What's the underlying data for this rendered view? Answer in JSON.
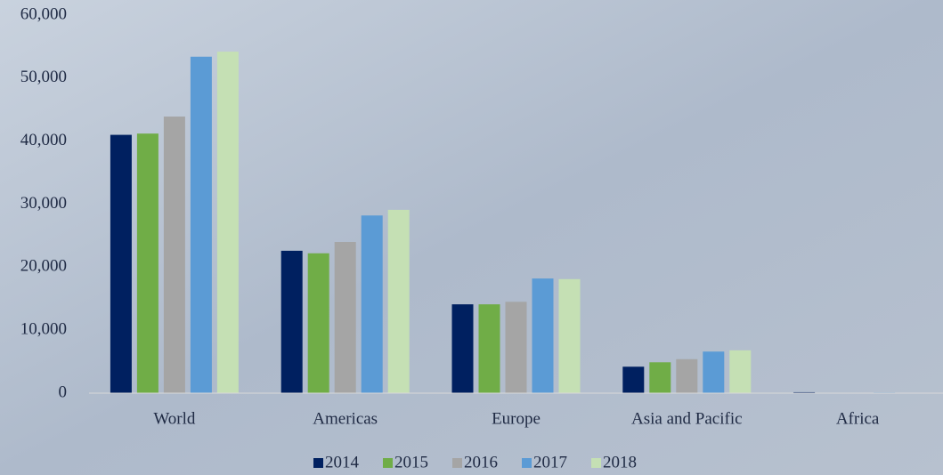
{
  "chart_data": {
    "type": "bar",
    "categories": [
      "World",
      "Americas",
      "Europe",
      "Asia and Pacific",
      "Africa"
    ],
    "series": [
      {
        "name": "2014",
        "color": "#002060",
        "values": [
          41000,
          22600,
          14100,
          4200,
          150
        ]
      },
      {
        "name": "2015",
        "color": "#70ad47",
        "values": [
          41200,
          22200,
          14100,
          4900,
          50
        ]
      },
      {
        "name": "2016",
        "color": "#a5a5a5",
        "values": [
          43900,
          24000,
          14500,
          5400,
          50
        ]
      },
      {
        "name": "2017",
        "color": "#5b9bd5",
        "values": [
          53400,
          28200,
          18200,
          6600,
          100
        ]
      },
      {
        "name": "2018",
        "color": "#c5e0b4",
        "values": [
          54200,
          29100,
          18100,
          6800,
          50
        ]
      }
    ],
    "ylim": [
      0,
      60000
    ],
    "yticks": [
      0,
      {
        "value": 10000,
        "label": "10,000"
      },
      {
        "value": 20000,
        "label": "20,000"
      },
      {
        "value": 30000,
        "label": "30,000"
      },
      {
        "value": 40000,
        "label": "40,000"
      },
      {
        "value": 50000,
        "label": "50,000"
      },
      {
        "value": 60000,
        "label": "60,000"
      }
    ],
    "legend": "bottom"
  }
}
